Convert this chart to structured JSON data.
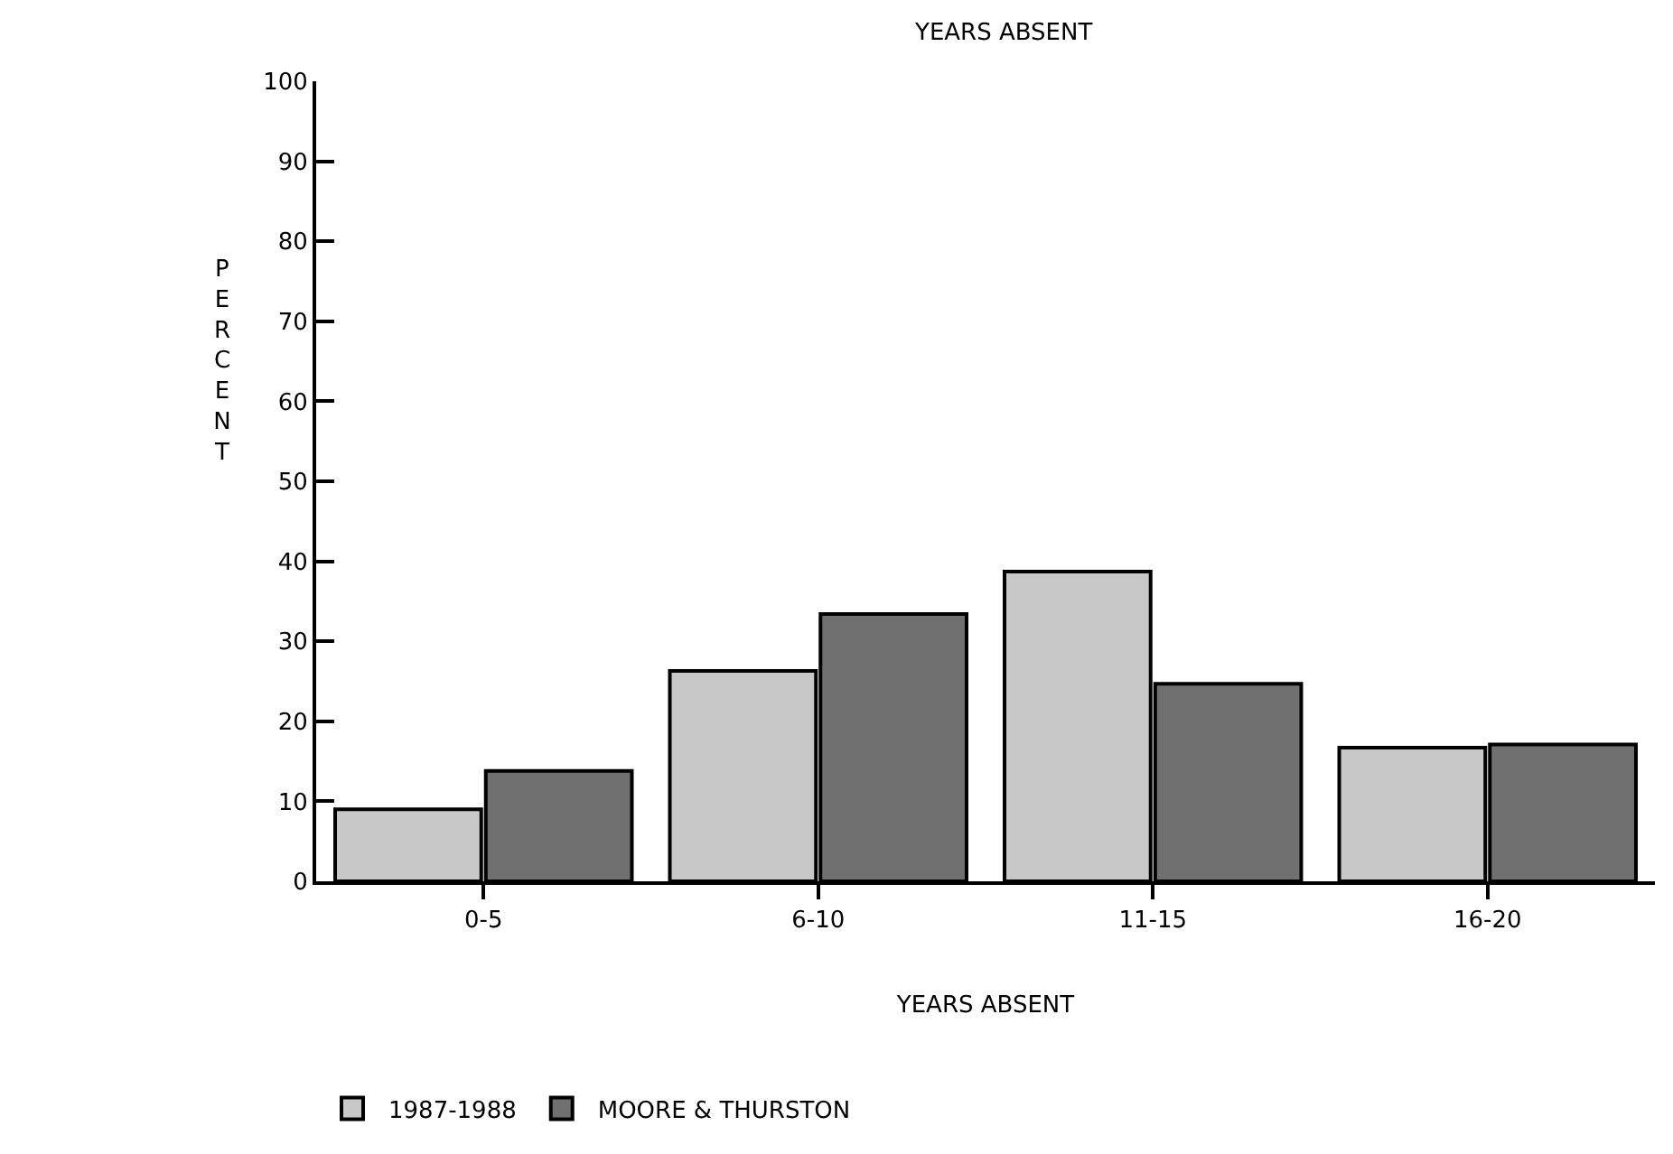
{
  "chart_data": {
    "type": "bar",
    "title": "YEARS ABSENT",
    "xlabel": "YEARS ABSENT",
    "ylabel": "PERCENT",
    "categories": [
      "0-5",
      "6-10",
      "11-15",
      "16-20"
    ],
    "series": [
      {
        "name": "1987-1988",
        "color": "#c8c8c8",
        "values": [
          9,
          26.3,
          38.7,
          16.7
        ]
      },
      {
        "name": "MOORE & THURSTON",
        "color": "#707070",
        "values": [
          13.8,
          33.4,
          24.7,
          17.1
        ]
      }
    ],
    "ylim": [
      0,
      100
    ],
    "yticks": [
      0,
      10,
      20,
      30,
      40,
      50,
      60,
      70,
      80,
      90,
      100
    ],
    "grid": false,
    "legend": "bottom left"
  }
}
